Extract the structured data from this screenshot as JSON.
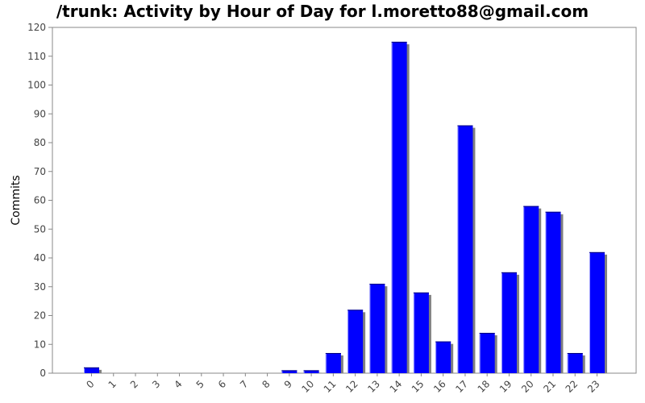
{
  "chart_data": {
    "type": "bar",
    "title": "/trunk: Activity by Hour of Day for l.moretto88@gmail.com",
    "xlabel": "",
    "ylabel": "Commits",
    "categories": [
      "0",
      "1",
      "2",
      "3",
      "4",
      "5",
      "6",
      "7",
      "8",
      "9",
      "10",
      "11",
      "12",
      "13",
      "14",
      "15",
      "16",
      "17",
      "18",
      "19",
      "20",
      "21",
      "22",
      "23"
    ],
    "values": [
      2,
      0,
      0,
      0,
      0,
      0,
      0,
      0,
      0,
      1,
      1,
      7,
      22,
      31,
      115,
      28,
      11,
      86,
      14,
      35,
      58,
      56,
      7,
      42
    ],
    "ylim": [
      0,
      120
    ],
    "yticks": [
      0,
      10,
      20,
      30,
      40,
      50,
      60,
      70,
      80,
      90,
      100,
      110,
      120
    ],
    "grid": false,
    "legend": "none",
    "colors": {
      "bar": "#0000ff",
      "bar_edge": "#000080",
      "bar_highlight": "#9999ff",
      "shadow": "#808080",
      "axis": "#888888"
    }
  }
}
